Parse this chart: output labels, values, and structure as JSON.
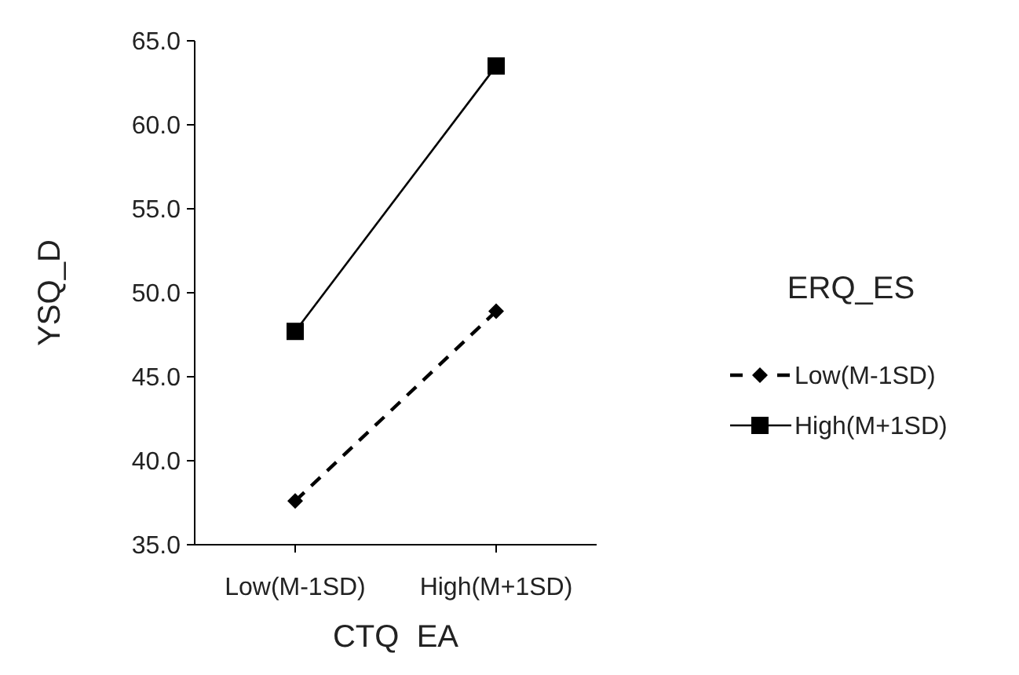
{
  "chart_data": {
    "type": "line",
    "xlabel": "CTQ  EA",
    "ylabel": "YSQ_D",
    "legend_title": "ERQ_ES",
    "legend": "right",
    "categories": [
      "Low(M-1SD)",
      "High(M+1SD)"
    ],
    "ylim": [
      35,
      65
    ],
    "yticks": [
      {
        "value": 35,
        "label": "35.0"
      },
      {
        "value": 40,
        "label": "40.0"
      },
      {
        "value": 45,
        "label": "45.0"
      },
      {
        "value": 50,
        "label": "50.0"
      },
      {
        "value": 55,
        "label": "55.0"
      },
      {
        "value": 60,
        "label": "60.0"
      },
      {
        "value": 65,
        "label": "65.0"
      }
    ],
    "grid": false,
    "series": [
      {
        "name": "Low(M-1SD)",
        "color": "#000000",
        "values": [
          37.6,
          48.9
        ],
        "marker": "diamond",
        "line_style": "dashed"
      },
      {
        "name": "High(M+1SD)",
        "color": "#000000",
        "values": [
          47.7,
          63.5
        ],
        "marker": "square",
        "line_style": "solid"
      }
    ]
  }
}
